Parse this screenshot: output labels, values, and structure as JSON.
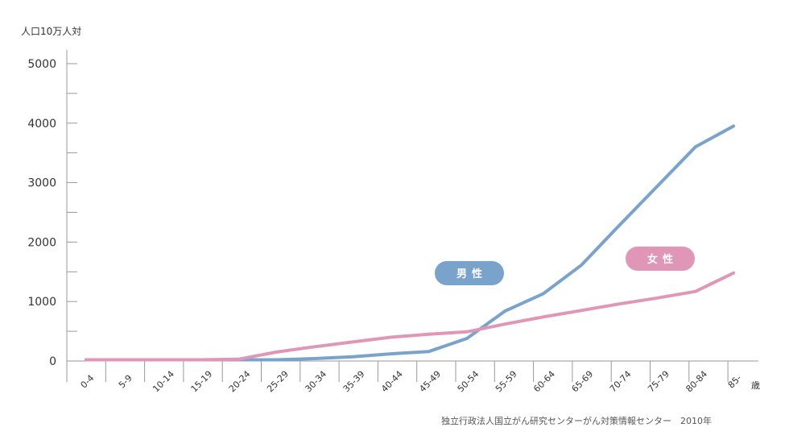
{
  "chart_data": {
    "type": "line",
    "ylabel": "人口10万人対",
    "x_unit": "歳",
    "categories": [
      "0-4",
      "5-9",
      "10-14",
      "15-19",
      "20-24",
      "25-29",
      "30-34",
      "35-39",
      "40-44",
      "45-49",
      "50-54",
      "55-59",
      "60-64",
      "65-69",
      "70-74",
      "75-79",
      "80-84",
      "85-"
    ],
    "ylim": [
      0,
      5000
    ],
    "yticks": [
      0,
      1000,
      2000,
      3000,
      4000,
      5000
    ],
    "grid": false,
    "series": [
      {
        "name": "男性",
        "color": "#7aa3cb",
        "values": [
          20,
          20,
          20,
          20,
          20,
          20,
          40,
          70,
          120,
          160,
          380,
          840,
          1130,
          1610,
          2280,
          2940,
          3600,
          3950
        ]
      },
      {
        "name": "女性",
        "color": "#e097b7",
        "values": [
          20,
          20,
          20,
          20,
          30,
          150,
          240,
          320,
          400,
          450,
          490,
          620,
          740,
          850,
          960,
          1060,
          1170,
          1480
        ]
      }
    ],
    "source": "独立行政法人国立がん研究センターがん対策情報センター　2010年"
  }
}
